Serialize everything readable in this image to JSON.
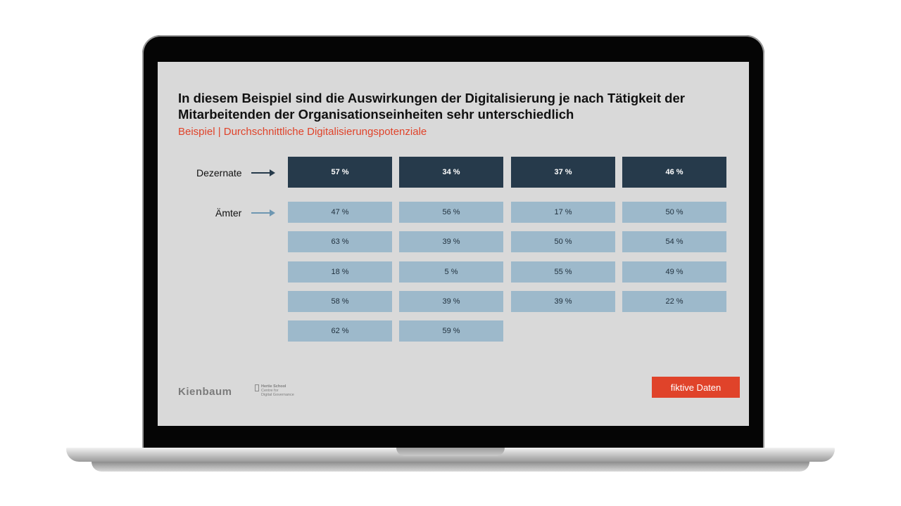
{
  "slide": {
    "title": "In diesem Beispiel sind die Auswirkungen der Digitalisierung je nach Tätigkeit der Mitarbeitenden der Organisationseinheiten sehr unterschiedlich",
    "subtitle": "Beispiel | Durchschnittliche Digitalisierungspotenziale",
    "labels": {
      "dezernate": "Dezernate",
      "aemter": "Ämter"
    },
    "dezernate": [
      "57 %",
      "34 %",
      "37 %",
      "46 %"
    ],
    "aemter_columns": [
      [
        "47 %",
        "63 %",
        "18 %",
        "58 %",
        "62 %"
      ],
      [
        "56 %",
        "39 %",
        "5 %",
        "39 %",
        "59 %"
      ],
      [
        "17 %",
        "50 %",
        "55 %",
        "39 %"
      ],
      [
        "50 %",
        "54 %",
        "49 %",
        "22 %"
      ]
    ],
    "logos": {
      "kienbaum": "Kienbaum",
      "hertie_line1": "Hertie School",
      "hertie_line2": "Centre for",
      "hertie_line3": "Digital Governance"
    },
    "badge": "fiktive Daten"
  },
  "colors": {
    "dezernate_fill": "#263a4b",
    "aemter_fill": "#9db9cb",
    "accent": "#e0432a",
    "slide_background": "#d9d9d9"
  }
}
